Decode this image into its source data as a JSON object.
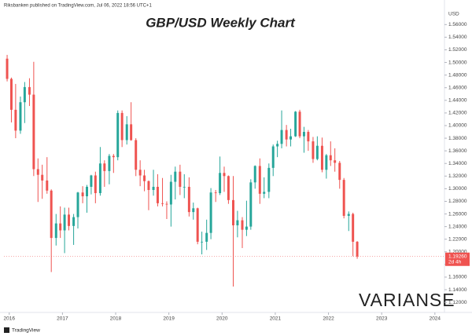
{
  "header": {
    "publisher": "Riksbanken published on TradingView.com, Jul 06, 2022 18:56 UTC+1",
    "brand": "TradingView",
    "watermark": "VARIANSE"
  },
  "chart_data": {
    "type": "candlestick",
    "title": "GBP/USD Weekly Chart",
    "y_unit": "USD",
    "up_color": "#26a69a",
    "down_color": "#ef5350",
    "xlim": [
      2015.9,
      2024.18
    ],
    "xticks": [
      2016,
      2017,
      2018,
      2019,
      2020,
      2021,
      2022,
      2023,
      2024
    ],
    "ylim": [
      1.104,
      1.584
    ],
    "yticks": [
      {
        "value": 1.12,
        "label": "1.12000"
      },
      {
        "value": 1.14,
        "label": "1.14000"
      },
      {
        "value": 1.16,
        "label": "1.16000"
      },
      {
        "value": 1.18,
        "label": "1.18000"
      },
      {
        "value": 1.2,
        "label": "1.20000"
      },
      {
        "value": 1.22,
        "label": "1.22000"
      },
      {
        "value": 1.24,
        "label": "1.24000"
      },
      {
        "value": 1.26,
        "label": "1.26000"
      },
      {
        "value": 1.28,
        "label": "1.28000"
      },
      {
        "value": 1.3,
        "label": "1.30000"
      },
      {
        "value": 1.32,
        "label": "1.32000"
      },
      {
        "value": 1.34,
        "label": "1.34000"
      },
      {
        "value": 1.36,
        "label": "1.36000"
      },
      {
        "value": 1.38,
        "label": "1.38000"
      },
      {
        "value": 1.4,
        "label": "1.40000"
      },
      {
        "value": 1.42,
        "label": "1.42000"
      },
      {
        "value": 1.44,
        "label": "1.44000"
      },
      {
        "value": 1.46,
        "label": "1.46000"
      },
      {
        "value": 1.48,
        "label": "1.48000"
      },
      {
        "value": 1.5,
        "label": "1.50000"
      },
      {
        "value": 1.52,
        "label": "1.52000"
      },
      {
        "value": 1.54,
        "label": "1.54000"
      },
      {
        "value": 1.56,
        "label": "1.56000"
      }
    ],
    "last_price": {
      "value": 1.1926,
      "label": "1.19260"
    },
    "last_price_countdown": "2d 4h",
    "x": [
      2015.96,
      2016.04,
      2016.12,
      2016.21,
      2016.29,
      2016.38,
      2016.46,
      2016.54,
      2016.62,
      2016.71,
      2016.79,
      2016.88,
      2016.96,
      2017.04,
      2017.12,
      2017.21,
      2017.29,
      2017.38,
      2017.46,
      2017.54,
      2017.62,
      2017.71,
      2017.79,
      2017.88,
      2017.96,
      2018.04,
      2018.12,
      2018.21,
      2018.29,
      2018.38,
      2018.46,
      2018.54,
      2018.62,
      2018.71,
      2018.79,
      2018.88,
      2018.96,
      2019.04,
      2019.12,
      2019.21,
      2019.29,
      2019.38,
      2019.46,
      2019.54,
      2019.62,
      2019.71,
      2019.79,
      2019.88,
      2019.96,
      2020.04,
      2020.12,
      2020.21,
      2020.29,
      2020.38,
      2020.46,
      2020.54,
      2020.62,
      2020.71,
      2020.79,
      2020.88,
      2020.96,
      2021.04,
      2021.12,
      2021.21,
      2021.29,
      2021.38,
      2021.46,
      2021.54,
      2021.62,
      2021.71,
      2021.79,
      2021.88,
      2021.96,
      2022.04,
      2022.12,
      2022.21,
      2022.29,
      2022.38,
      2022.46,
      2022.54
    ],
    "open": [
      1.506,
      1.474,
      1.425,
      1.392,
      1.437,
      1.461,
      1.449,
      1.331,
      1.322,
      1.313,
      1.297,
      1.222,
      1.245,
      1.234,
      1.259,
      1.241,
      1.255,
      1.294,
      1.288,
      1.303,
      1.321,
      1.293,
      1.34,
      1.328,
      1.352,
      1.35,
      1.42,
      1.377,
      1.402,
      1.377,
      1.33,
      1.321,
      1.312,
      1.298,
      1.303,
      1.277,
      1.276,
      1.275,
      1.311,
      1.327,
      1.303,
      1.303,
      1.263,
      1.269,
      1.216,
      1.216,
      1.23,
      1.294,
      1.293,
      1.325,
      1.32,
      1.282,
      1.242,
      1.25,
      1.235,
      1.24,
      1.31,
      1.336,
      1.292,
      1.295,
      1.333,
      1.367,
      1.371,
      1.393,
      1.378,
      1.383,
      1.422,
      1.383,
      1.39,
      1.375,
      1.347,
      1.368,
      1.33,
      1.353,
      1.345,
      1.341,
      1.314,
      1.257,
      1.26,
      1.216
    ],
    "high": [
      1.512,
      1.476,
      1.466,
      1.446,
      1.469,
      1.475,
      1.501,
      1.348,
      1.338,
      1.35,
      1.299,
      1.26,
      1.272,
      1.27,
      1.27,
      1.26,
      1.295,
      1.304,
      1.306,
      1.322,
      1.327,
      1.366,
      1.345,
      1.355,
      1.355,
      1.424,
      1.424,
      1.415,
      1.437,
      1.38,
      1.345,
      1.33,
      1.313,
      1.33,
      1.323,
      1.317,
      1.28,
      1.322,
      1.335,
      1.338,
      1.323,
      1.318,
      1.278,
      1.27,
      1.232,
      1.251,
      1.301,
      1.298,
      1.351,
      1.335,
      1.321,
      1.32,
      1.265,
      1.255,
      1.281,
      1.315,
      1.337,
      1.348,
      1.318,
      1.34,
      1.37,
      1.376,
      1.424,
      1.401,
      1.395,
      1.423,
      1.425,
      1.398,
      1.393,
      1.382,
      1.383,
      1.381,
      1.355,
      1.375,
      1.364,
      1.344,
      1.317,
      1.264,
      1.262,
      1.217
    ],
    "low": [
      1.47,
      1.405,
      1.38,
      1.387,
      1.404,
      1.431,
      1.32,
      1.279,
      1.284,
      1.292,
      1.168,
      1.21,
      1.222,
      1.198,
      1.234,
      1.211,
      1.237,
      1.277,
      1.262,
      1.291,
      1.277,
      1.289,
      1.303,
      1.307,
      1.325,
      1.345,
      1.366,
      1.37,
      1.376,
      1.32,
      1.304,
      1.296,
      1.266,
      1.289,
      1.272,
      1.272,
      1.252,
      1.24,
      1.283,
      1.29,
      1.285,
      1.256,
      1.251,
      1.212,
      1.196,
      1.203,
      1.22,
      1.279,
      1.29,
      1.295,
      1.276,
      1.145,
      1.223,
      1.206,
      1.225,
      1.235,
      1.3,
      1.276,
      1.285,
      1.285,
      1.32,
      1.35,
      1.364,
      1.367,
      1.367,
      1.382,
      1.38,
      1.357,
      1.36,
      1.341,
      1.345,
      1.326,
      1.316,
      1.336,
      1.327,
      1.3,
      1.253,
      1.233,
      1.193,
      1.189
    ],
    "close": [
      1.474,
      1.425,
      1.392,
      1.437,
      1.461,
      1.449,
      1.331,
      1.322,
      1.313,
      1.297,
      1.222,
      1.245,
      1.234,
      1.259,
      1.241,
      1.255,
      1.294,
      1.288,
      1.303,
      1.321,
      1.293,
      1.34,
      1.328,
      1.352,
      1.35,
      1.42,
      1.377,
      1.402,
      1.377,
      1.33,
      1.321,
      1.312,
      1.298,
      1.303,
      1.277,
      1.276,
      1.275,
      1.311,
      1.327,
      1.303,
      1.303,
      1.263,
      1.269,
      1.216,
      1.216,
      1.23,
      1.294,
      1.293,
      1.325,
      1.32,
      1.282,
      1.242,
      1.25,
      1.235,
      1.24,
      1.31,
      1.336,
      1.292,
      1.295,
      1.333,
      1.367,
      1.371,
      1.393,
      1.378,
      1.383,
      1.422,
      1.383,
      1.39,
      1.375,
      1.347,
      1.368,
      1.33,
      1.353,
      1.345,
      1.341,
      1.314,
      1.257,
      1.26,
      1.216,
      1.1926
    ]
  }
}
